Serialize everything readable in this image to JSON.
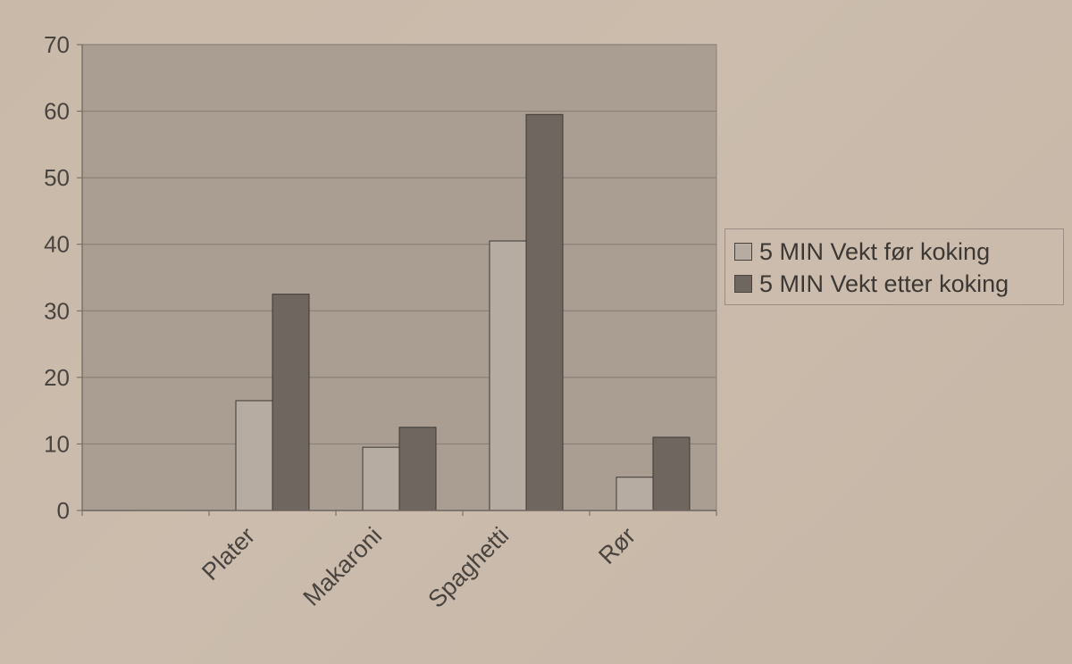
{
  "chart_data": {
    "type": "bar",
    "title": "",
    "xlabel": "",
    "ylabel": "",
    "categories": [
      "Plater",
      "Makaroni",
      "Spaghetti",
      "Rør"
    ],
    "series": [
      {
        "name": "5 MIN Vekt før koking",
        "values": [
          16.5,
          9.5,
          40.5,
          5
        ],
        "color": "#b7aca2"
      },
      {
        "name": "5 MIN Vekt etter koking",
        "values": [
          32.5,
          12.5,
          59.5,
          11
        ],
        "color": "#6f6660"
      }
    ],
    "ylim": [
      0,
      70
    ],
    "yticks": [
      0,
      10,
      20,
      30,
      40,
      50,
      60,
      70
    ],
    "grid": true,
    "legend_position": "right",
    "colors": {
      "plot_background": "#aa9e93",
      "gridline": "#8c8178",
      "axis": "#6d655e",
      "text": "#4a4440"
    }
  }
}
